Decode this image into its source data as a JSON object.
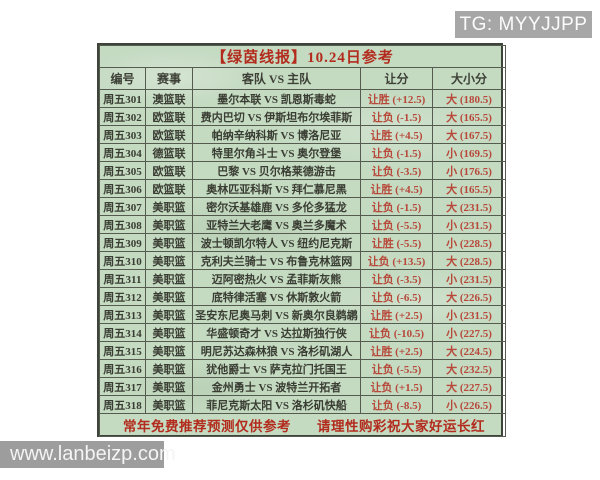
{
  "watermarks": {
    "tg_badge": "TG: MYYJJPP",
    "site": "www.lanbeizp.com"
  },
  "colors": {
    "sheet_green": "#c4dac1",
    "title_red": "#b32b1d",
    "value_red": "#b7483a",
    "dark_text": "#3a3d33",
    "badge_gray": "#a7a7a7"
  },
  "table": {
    "title": "【绿茵线报】10.24日参考",
    "columns": [
      "编号",
      "赛事",
      "客队 VS 主队",
      "让分",
      "大小分"
    ],
    "rows": [
      {
        "id": "周五301",
        "league": "澳篮联",
        "match": "墨尔本联 VS 凯恩斯毒蛇",
        "handicap": "让胜 (+12.5)",
        "total": "大 (180.5)"
      },
      {
        "id": "周五302",
        "league": "欧篮联",
        "match": "费内巴切 VS 伊斯坦布尔埃菲斯",
        "handicap": "让负 (-1.5)",
        "total": "大 (165.5)"
      },
      {
        "id": "周五303",
        "league": "欧篮联",
        "match": "帕纳辛纳科斯 VS 博洛尼亚",
        "handicap": "让胜 (+4.5)",
        "total": "大 (167.5)"
      },
      {
        "id": "周五304",
        "league": "德篮联",
        "match": "特里尔角斗士 VS 奥尔登堡",
        "handicap": "让负 (-1.5)",
        "total": "小 (169.5)"
      },
      {
        "id": "周五305",
        "league": "欧篮联",
        "match": "巴黎 VS 贝尔格莱德游击",
        "handicap": "让负 (-3.5)",
        "total": "小 (176.5)"
      },
      {
        "id": "周五306",
        "league": "欧篮联",
        "match": "奥林匹亚科斯 VS 拜仁慕尼黑",
        "handicap": "让胜 (+4.5)",
        "total": "大 (165.5)"
      },
      {
        "id": "周五307",
        "league": "美职篮",
        "match": "密尔沃基雄鹿 VS 多伦多猛龙",
        "handicap": "让负 (-1.5)",
        "total": "大 (231.5)"
      },
      {
        "id": "周五308",
        "league": "美职篮",
        "match": "亚特兰大老鹰 VS 奥兰多魔术",
        "handicap": "让负 (-5.5)",
        "total": "小 (231.5)"
      },
      {
        "id": "周五309",
        "league": "美职篮",
        "match": "波士顿凯尔特人 VS 纽约尼克斯",
        "handicap": "让胜 (-5.5)",
        "total": "小 (228.5)"
      },
      {
        "id": "周五310",
        "league": "美职篮",
        "match": "克利夫兰骑士 VS 布鲁克林篮网",
        "handicap": "让负 (+13.5)",
        "total": "大 (228.5)"
      },
      {
        "id": "周五311",
        "league": "美职篮",
        "match": "迈阿密热火 VS 孟菲斯灰熊",
        "handicap": "让负 (-3.5)",
        "total": "小 (231.5)"
      },
      {
        "id": "周五312",
        "league": "美职篮",
        "match": "底特律活塞 VS 休斯敦火箭",
        "handicap": "让负 (-6.5)",
        "total": "大 (226.5)"
      },
      {
        "id": "周五313",
        "league": "美职篮",
        "match": "圣安东尼奥马刺 VS 新奥尔良鹈鹕",
        "handicap": "让胜 (+2.5)",
        "total": "小 (231.5)"
      },
      {
        "id": "周五314",
        "league": "美职篮",
        "match": "华盛顿奇才 VS 达拉斯独行侠",
        "handicap": "让负 (-10.5)",
        "total": "小 (227.5)"
      },
      {
        "id": "周五315",
        "league": "美职篮",
        "match": "明尼苏达森林狼 VS 洛杉矶湖人",
        "handicap": "让胜 (+2.5)",
        "total": "大 (224.5)"
      },
      {
        "id": "周五316",
        "league": "美职篮",
        "match": "犹他爵士 VS 萨克拉门托国王",
        "handicap": "让负 (-5.5)",
        "total": "大 (232.5)"
      },
      {
        "id": "周五317",
        "league": "美职篮",
        "match": "金州勇士 VS 波特兰开拓者",
        "handicap": "让负 (+1.5)",
        "total": "大 (227.5)"
      },
      {
        "id": "周五318",
        "league": "美职篮",
        "match": "菲尼克斯太阳 VS 洛杉矶快船",
        "handicap": "让负 (-8.5)",
        "total": "小 (226.5)"
      }
    ],
    "footer_notes": [
      "常年免费推荐",
      "预测仅供参考",
      "请理性购彩",
      "祝大家好运长红"
    ]
  }
}
